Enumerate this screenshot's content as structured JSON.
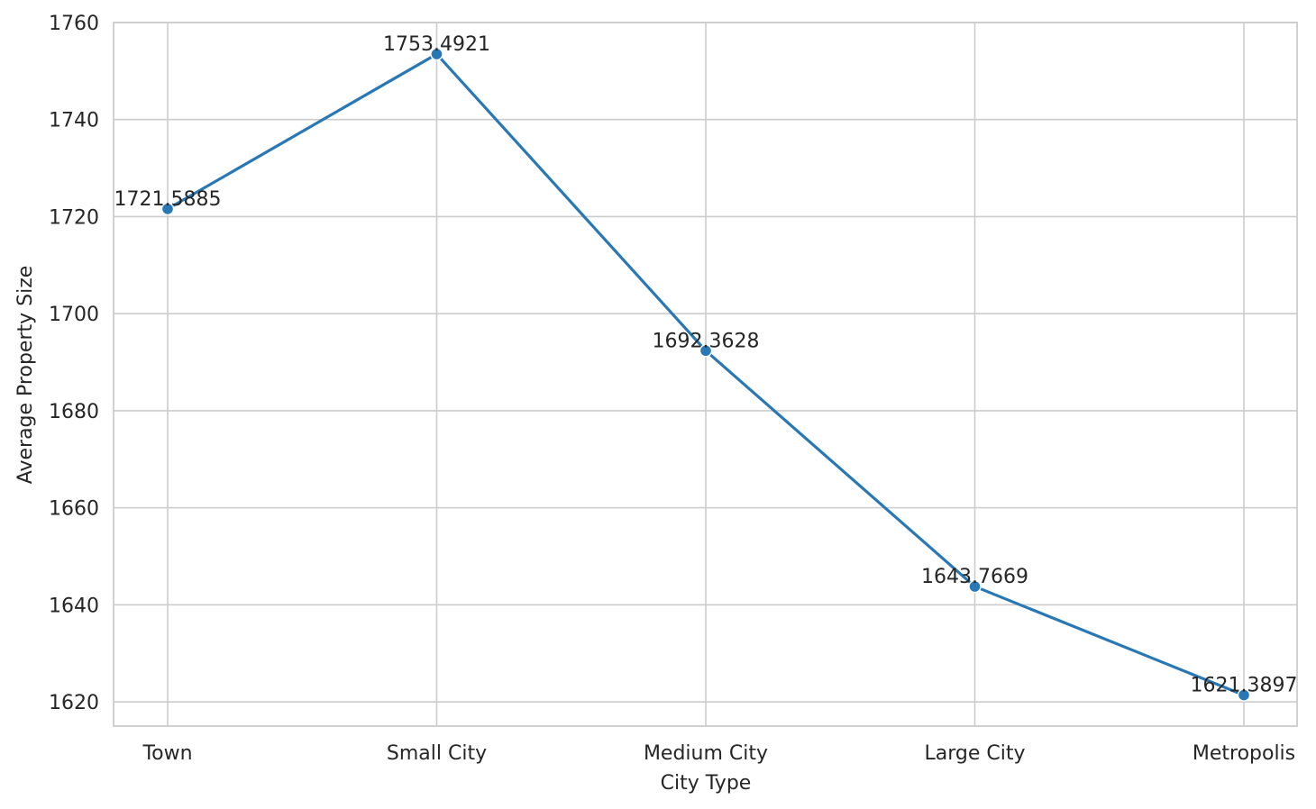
{
  "chart_data": {
    "type": "line",
    "categories": [
      "Town",
      "Small City",
      "Medium City",
      "Large City",
      "Metropolis"
    ],
    "series": [
      {
        "values": [
          1721.5885,
          1753.4921,
          1692.3628,
          1643.7669,
          1621.3897
        ],
        "color": "#2878b5"
      }
    ],
    "data_labels": [
      "1721.5885",
      "1753.4921",
      "1692.3628",
      "1643.7669",
      "1621.3897"
    ],
    "xlabel": "City Type",
    "ylabel": "Average Property Size",
    "ylim": [
      1615,
      1760
    ],
    "yticks": [
      1620,
      1640,
      1660,
      1680,
      1700,
      1720,
      1740,
      1760
    ],
    "grid": true,
    "marker": "circle"
  }
}
